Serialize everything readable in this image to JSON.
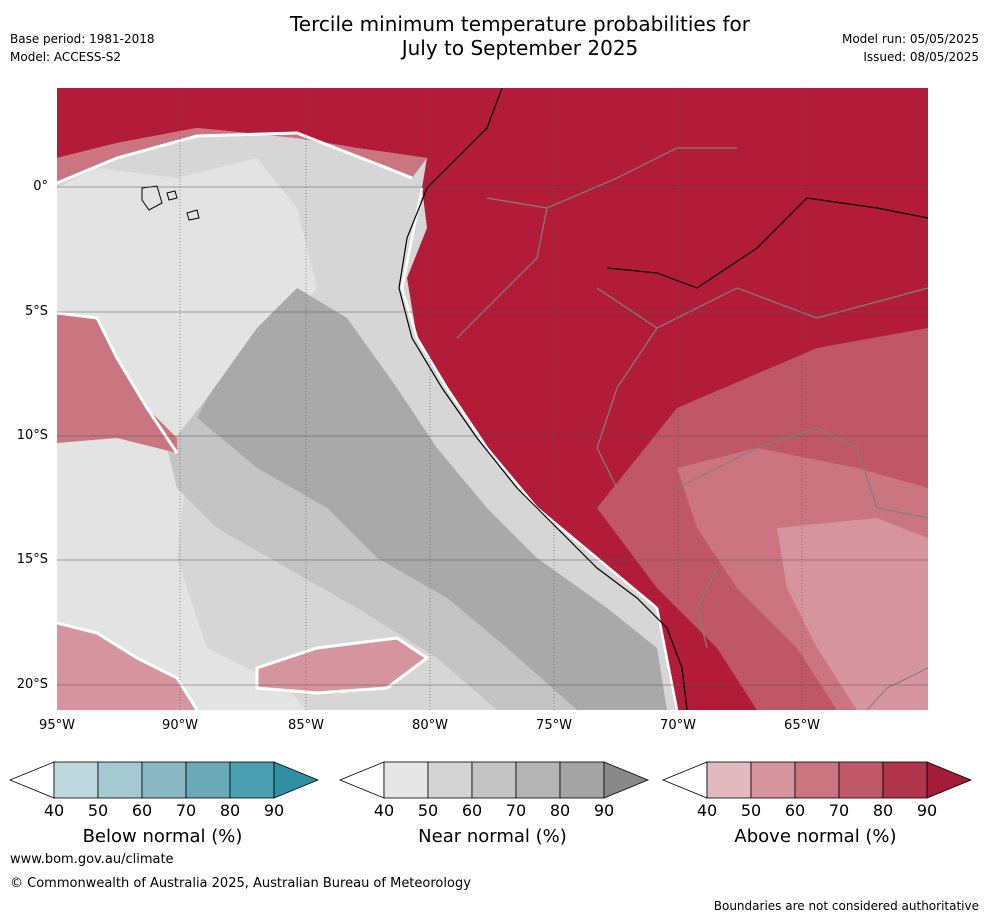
{
  "title_line1": "Tercile minimum temperature probabilities for",
  "title_line2": "July to September 2025",
  "base_period": "Base period: 1981-2018",
  "model": "Model: ACCESS-S2",
  "model_run": "Model run: 05/05/2025",
  "issued": "Issued: 08/05/2025",
  "lat_labels": [
    "0°",
    "5°S",
    "10°S",
    "15°S",
    "20°S"
  ],
  "lon_labels": [
    "95°W",
    "90°W",
    "85°W",
    "80°W",
    "75°W",
    "70°W",
    "65°W"
  ],
  "colorbars": [
    {
      "title": "Below normal (%)",
      "ticks": [
        "40",
        "50",
        "60",
        "70",
        "80",
        "90"
      ],
      "colors": [
        "#ffffff",
        "#bdd7dc",
        "#a5c9d0",
        "#8ab8c3",
        "#6aa9b6",
        "#4a9fb0",
        "#2f8fa2"
      ]
    },
    {
      "title": "Near normal (%)",
      "ticks": [
        "40",
        "50",
        "60",
        "70",
        "80",
        "90"
      ],
      "colors": [
        "#ffffff",
        "#e6e6e6",
        "#d4d4d4",
        "#c4c4c4",
        "#b4b4b4",
        "#a4a4a4",
        "#888888"
      ]
    },
    {
      "title": "Above normal (%)",
      "ticks": [
        "40",
        "50",
        "60",
        "70",
        "80",
        "90"
      ],
      "colors": [
        "#ffffff",
        "#e1b9bf",
        "#d6959e",
        "#cb7580",
        "#c05766",
        "#b2344a",
        "#a51c38"
      ]
    }
  ],
  "website": "www.bom.gov.au/climate",
  "copyright": "© Commonwealth of Australia 2025, Australian Bureau of Meteorology",
  "disclaimer": "Boundaries are not considered authoritative"
}
